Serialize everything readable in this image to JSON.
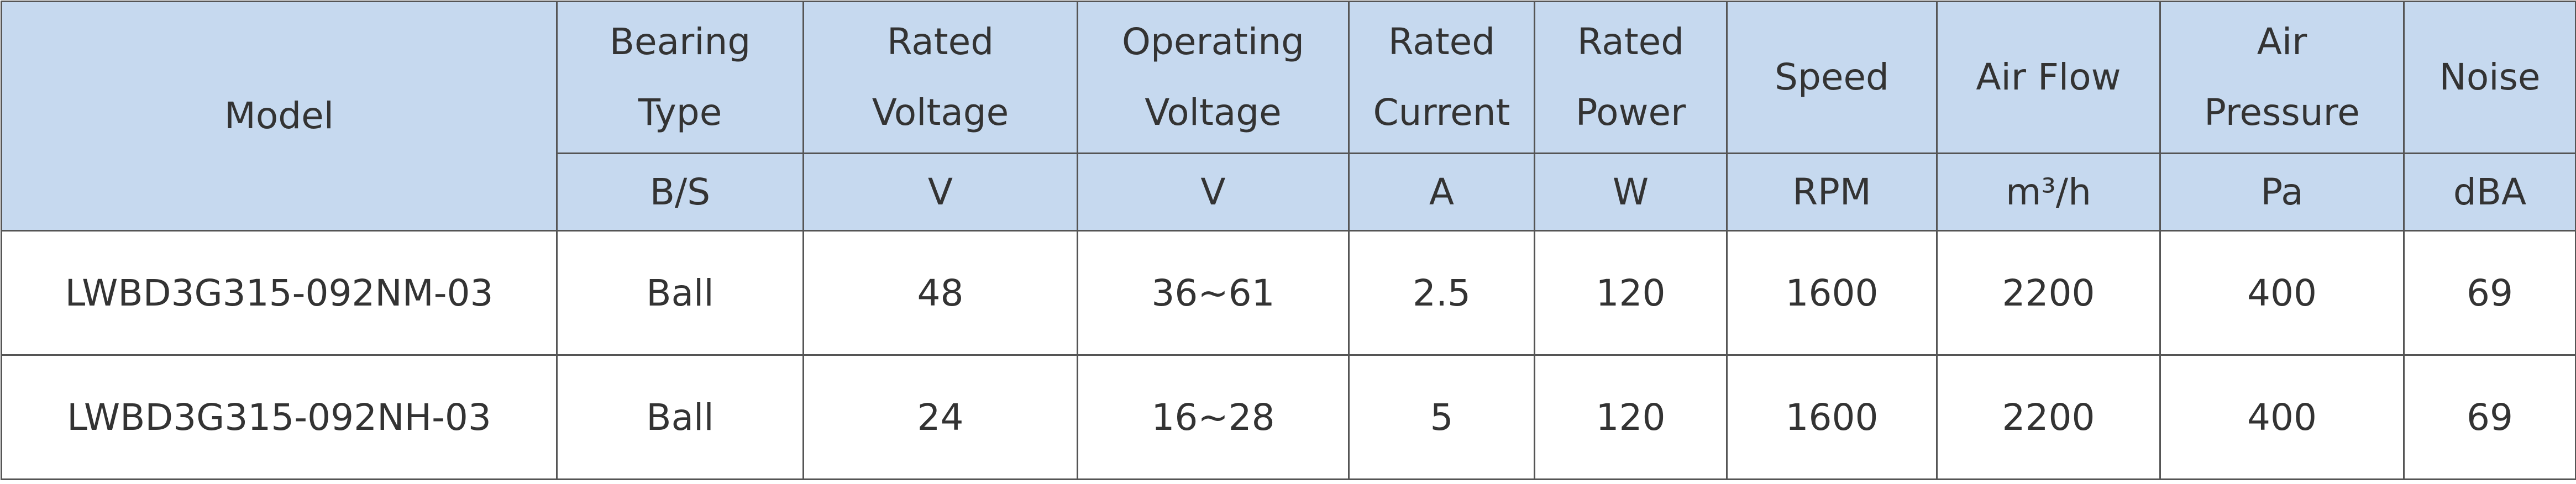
{
  "table": {
    "headers": [
      {
        "lines": [
          "Model"
        ]
      },
      {
        "lines": [
          "Bearing",
          "Type"
        ],
        "unit": "B/S"
      },
      {
        "lines": [
          "Rated",
          "Voltage"
        ],
        "unit": "V"
      },
      {
        "lines": [
          "Operating",
          "Voltage"
        ],
        "unit": "V"
      },
      {
        "lines": [
          "Rated",
          "Current"
        ],
        "unit": "A"
      },
      {
        "lines": [
          "Rated",
          "Power"
        ],
        "unit": "W"
      },
      {
        "lines": [
          "Speed"
        ],
        "unit": "RPM"
      },
      {
        "lines": [
          "Air Flow"
        ],
        "unit": "m³/h"
      },
      {
        "lines": [
          "Air",
          "Pressure"
        ],
        "unit": "Pa"
      },
      {
        "lines": [
          "Noise"
        ],
        "unit": "dBA"
      }
    ],
    "rows": [
      [
        "LWBD3G315-092NM-03",
        "Ball",
        "48",
        "36~61",
        "2.5",
        "120",
        "1600",
        "2200",
        "400",
        "69"
      ],
      [
        "LWBD3G315-092NH-03",
        "Ball",
        "24",
        "16~28",
        "5",
        "120",
        "1600",
        "2200",
        "400",
        "69"
      ]
    ]
  }
}
